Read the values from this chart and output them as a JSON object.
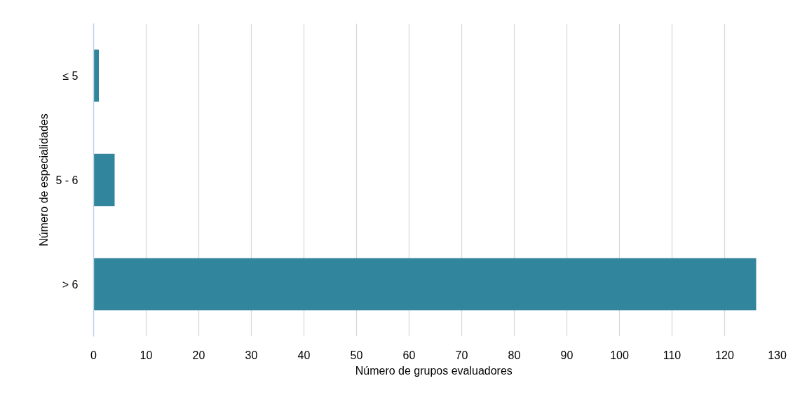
{
  "chart_data": {
    "type": "bar",
    "orientation": "horizontal",
    "categories": [
      "≤ 5",
      "5 - 6",
      "> 6"
    ],
    "values": [
      1,
      4,
      126
    ],
    "color": "#31859c",
    "xlabel": "Número de  grupos evaluadores",
    "ylabel": "Número de especialidades",
    "xlim": [
      0,
      130
    ],
    "xticks": [
      0,
      10,
      20,
      30,
      40,
      50,
      60,
      70,
      80,
      90,
      100,
      110,
      120,
      130
    ],
    "grid": "x"
  }
}
